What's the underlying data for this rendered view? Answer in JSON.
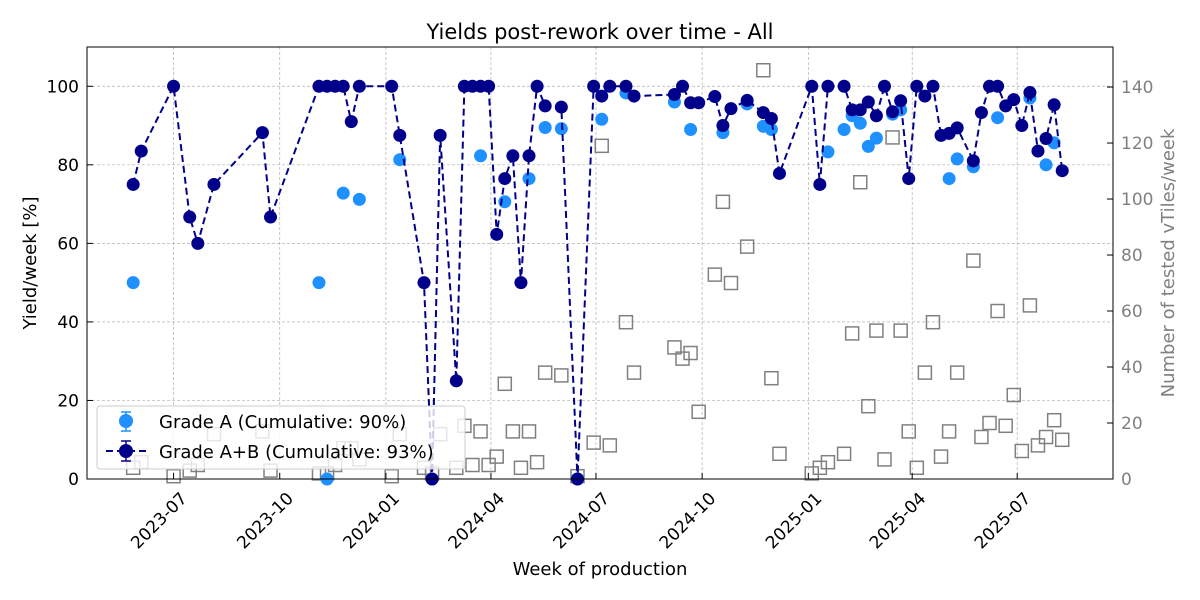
{
  "chart_data": {
    "type": "scatter",
    "title": "Yields post-rework over time - All",
    "xlabel": "Week of production",
    "ylabel": "Yield/week [%]",
    "ylabel_right": "Number of tested vTiles/week",
    "xlim": [
      "2023-04-17",
      "2025-09-22"
    ],
    "ylim": [
      0,
      110
    ],
    "ylim_right": [
      0,
      154.3
    ],
    "x_ticks": [
      "2023-07",
      "2023-10",
      "2024-01",
      "2024-04",
      "2024-07",
      "2024-10",
      "2025-01",
      "2025-04",
      "2025-07"
    ],
    "y_ticks": [
      "0",
      "20",
      "40",
      "60",
      "80",
      "100"
    ],
    "y_ticks_right": [
      "0",
      "20",
      "40",
      "60",
      "80",
      "100",
      "120",
      "140"
    ],
    "grid": true,
    "legend_position": "lower-left",
    "colors": {
      "grade_a": "#1e90ff",
      "grade_ab": "#00008b",
      "tested": "#808080"
    },
    "series": [
      {
        "name": "Grade A (Cumulative: 90%)",
        "axis": "left",
        "style": "markers",
        "points": [
          [
            "2023-05-27",
            50
          ],
          [
            "2023-11-04",
            50
          ],
          [
            "2023-11-11",
            0
          ],
          [
            "2023-11-25",
            72.8
          ],
          [
            "2023-12-09",
            71.2
          ],
          [
            "2024-01-13",
            81.3
          ],
          [
            "2024-02-10",
            0
          ],
          [
            "2024-03-23",
            82.3
          ],
          [
            "2024-04-13",
            70.6
          ],
          [
            "2024-05-04",
            76.5
          ],
          [
            "2024-05-18",
            89.5
          ],
          [
            "2024-06-01",
            89.2
          ],
          [
            "2024-06-15",
            0
          ],
          [
            "2024-07-06",
            91.6
          ],
          [
            "2024-07-27",
            98.3
          ],
          [
            "2024-09-07",
            96
          ],
          [
            "2024-09-21",
            89
          ],
          [
            "2024-10-19",
            88.2
          ],
          [
            "2024-11-09",
            95.5
          ],
          [
            "2024-11-23",
            89.8
          ],
          [
            "2024-11-30",
            89
          ],
          [
            "2025-01-18",
            83.3
          ],
          [
            "2025-02-01",
            89
          ],
          [
            "2025-02-08",
            92.5
          ],
          [
            "2025-02-15",
            90.6
          ],
          [
            "2025-02-22",
            84.7
          ],
          [
            "2025-03-01",
            86.8
          ],
          [
            "2025-03-15",
            92.9
          ],
          [
            "2025-03-22",
            94
          ],
          [
            "2025-05-03",
            76.5
          ],
          [
            "2025-05-10",
            81.5
          ],
          [
            "2025-05-24",
            79.5
          ],
          [
            "2025-06-14",
            92
          ],
          [
            "2025-07-12",
            97
          ],
          [
            "2025-07-26",
            80
          ],
          [
            "2025-08-02",
            85.6
          ]
        ]
      },
      {
        "name": "Grade A+B (Cumulative: 93%)",
        "axis": "left",
        "style": "dashed-line-markers",
        "points": [
          [
            "2023-05-27",
            75
          ],
          [
            "2023-06-03",
            83.5
          ],
          [
            "2023-07-01",
            100
          ],
          [
            "2023-07-15",
            66.7
          ],
          [
            "2023-07-22",
            60
          ],
          [
            "2023-08-05",
            75
          ],
          [
            "2023-09-16",
            88.2
          ],
          [
            "2023-09-23",
            66.7
          ],
          [
            "2023-11-04",
            100
          ],
          [
            "2023-11-11",
            100
          ],
          [
            "2023-11-18",
            100
          ],
          [
            "2023-11-25",
            100
          ],
          [
            "2023-12-02",
            91
          ],
          [
            "2023-12-09",
            100
          ],
          [
            "2024-01-06",
            100
          ],
          [
            "2024-01-13",
            87.5
          ],
          [
            "2024-02-03",
            50
          ],
          [
            "2024-02-10",
            0
          ],
          [
            "2024-02-17",
            87.5
          ],
          [
            "2024-03-02",
            25
          ],
          [
            "2024-03-09",
            100
          ],
          [
            "2024-03-16",
            100
          ],
          [
            "2024-03-23",
            100
          ],
          [
            "2024-03-30",
            100
          ],
          [
            "2024-04-06",
            62.3
          ],
          [
            "2024-04-13",
            76.5
          ],
          [
            "2024-04-20",
            82.3
          ],
          [
            "2024-04-27",
            50
          ],
          [
            "2024-05-04",
            82.3
          ],
          [
            "2024-05-11",
            100
          ],
          [
            "2024-05-18",
            95
          ],
          [
            "2024-06-01",
            94.7
          ],
          [
            "2024-06-15",
            0
          ],
          [
            "2024-06-29",
            100
          ],
          [
            "2024-07-06",
            97.5
          ],
          [
            "2024-07-13",
            100
          ],
          [
            "2024-07-27",
            100
          ],
          [
            "2024-08-03",
            97.5
          ],
          [
            "2024-09-07",
            97.9
          ],
          [
            "2024-09-14",
            100
          ],
          [
            "2024-09-21",
            95.8
          ],
          [
            "2024-09-28",
            95.8
          ],
          [
            "2024-10-12",
            97.4
          ],
          [
            "2024-10-19",
            90
          ],
          [
            "2024-10-26",
            94.3
          ],
          [
            "2024-11-09",
            96.4
          ],
          [
            "2024-11-23",
            93.3
          ],
          [
            "2024-11-30",
            91.8
          ],
          [
            "2024-12-07",
            77.8
          ],
          [
            "2025-01-04",
            100
          ],
          [
            "2025-01-11",
            75
          ],
          [
            "2025-01-18",
            100
          ],
          [
            "2025-02-01",
            100
          ],
          [
            "2025-02-08",
            94
          ],
          [
            "2025-02-15",
            94
          ],
          [
            "2025-02-22",
            96
          ],
          [
            "2025-03-01",
            92.5
          ],
          [
            "2025-03-08",
            100
          ],
          [
            "2025-03-15",
            93.5
          ],
          [
            "2025-03-22",
            96.3
          ],
          [
            "2025-03-29",
            76.5
          ],
          [
            "2025-04-05",
            100
          ],
          [
            "2025-04-12",
            97.5
          ],
          [
            "2025-04-19",
            100
          ],
          [
            "2025-04-26",
            87.5
          ],
          [
            "2025-05-03",
            88
          ],
          [
            "2025-05-10",
            89.4
          ],
          [
            "2025-05-24",
            81
          ],
          [
            "2025-05-31",
            93.3
          ],
          [
            "2025-06-07",
            100
          ],
          [
            "2025-06-14",
            100
          ],
          [
            "2025-06-21",
            95
          ],
          [
            "2025-06-28",
            96.6
          ],
          [
            "2025-07-05",
            90
          ],
          [
            "2025-07-12",
            98.4
          ],
          [
            "2025-07-19",
            83.5
          ],
          [
            "2025-07-26",
            86.7
          ],
          [
            "2025-08-02",
            95.3
          ],
          [
            "2025-08-09",
            78.5
          ]
        ]
      },
      {
        "axis": "right",
        "style": "hollow-squares",
        "points": [
          [
            "2023-05-27",
            4
          ],
          [
            "2023-06-03",
            6
          ],
          [
            "2023-07-01",
            1
          ],
          [
            "2023-07-15",
            3
          ],
          [
            "2023-07-22",
            5
          ],
          [
            "2023-08-05",
            16
          ],
          [
            "2023-09-16",
            17
          ],
          [
            "2023-09-23",
            3
          ],
          [
            "2023-11-04",
            2
          ],
          [
            "2023-11-11",
            2
          ],
          [
            "2023-11-18",
            5
          ],
          [
            "2023-11-25",
            11
          ],
          [
            "2023-12-02",
            11
          ],
          [
            "2023-12-09",
            7
          ],
          [
            "2024-01-06",
            1
          ],
          [
            "2024-01-13",
            16
          ],
          [
            "2024-02-03",
            4
          ],
          [
            "2024-02-10",
            2
          ],
          [
            "2024-02-17",
            16
          ],
          [
            "2024-03-02",
            4
          ],
          [
            "2024-03-09",
            19
          ],
          [
            "2024-03-16",
            5
          ],
          [
            "2024-03-23",
            17
          ],
          [
            "2024-03-30",
            5
          ],
          [
            "2024-04-06",
            8
          ],
          [
            "2024-04-13",
            34
          ],
          [
            "2024-04-20",
            17
          ],
          [
            "2024-04-27",
            4
          ],
          [
            "2024-05-04",
            17
          ],
          [
            "2024-05-11",
            6
          ],
          [
            "2024-05-18",
            38
          ],
          [
            "2024-06-01",
            37
          ],
          [
            "2024-06-15",
            1
          ],
          [
            "2024-06-29",
            13
          ],
          [
            "2024-07-06",
            119
          ],
          [
            "2024-07-13",
            12
          ],
          [
            "2024-07-27",
            56
          ],
          [
            "2024-08-03",
            38
          ],
          [
            "2024-09-07",
            47
          ],
          [
            "2024-09-14",
            43
          ],
          [
            "2024-09-21",
            45
          ],
          [
            "2024-09-28",
            24
          ],
          [
            "2024-10-12",
            73
          ],
          [
            "2024-10-19",
            99
          ],
          [
            "2024-10-26",
            70
          ],
          [
            "2024-11-09",
            83
          ],
          [
            "2024-11-23",
            146
          ],
          [
            "2024-11-30",
            36
          ],
          [
            "2024-12-07",
            9
          ],
          [
            "2025-01-04",
            2
          ],
          [
            "2025-01-11",
            4
          ],
          [
            "2025-01-18",
            6
          ],
          [
            "2025-02-01",
            9
          ],
          [
            "2025-02-08",
            52
          ],
          [
            "2025-02-15",
            106
          ],
          [
            "2025-02-22",
            26
          ],
          [
            "2025-03-01",
            53
          ],
          [
            "2025-03-08",
            7
          ],
          [
            "2025-03-15",
            122
          ],
          [
            "2025-03-22",
            53
          ],
          [
            "2025-03-29",
            17
          ],
          [
            "2025-04-05",
            4
          ],
          [
            "2025-04-12",
            38
          ],
          [
            "2025-04-19",
            56
          ],
          [
            "2025-04-26",
            8
          ],
          [
            "2025-05-03",
            17
          ],
          [
            "2025-05-10",
            38
          ],
          [
            "2025-05-24",
            78
          ],
          [
            "2025-05-31",
            15
          ],
          [
            "2025-06-07",
            20
          ],
          [
            "2025-06-14",
            60
          ],
          [
            "2025-06-21",
            19
          ],
          [
            "2025-06-28",
            30
          ],
          [
            "2025-07-05",
            10
          ],
          [
            "2025-07-12",
            62
          ],
          [
            "2025-07-19",
            12
          ],
          [
            "2025-07-26",
            15
          ],
          [
            "2025-08-02",
            21
          ],
          [
            "2025-08-09",
            14
          ]
        ]
      }
    ]
  }
}
